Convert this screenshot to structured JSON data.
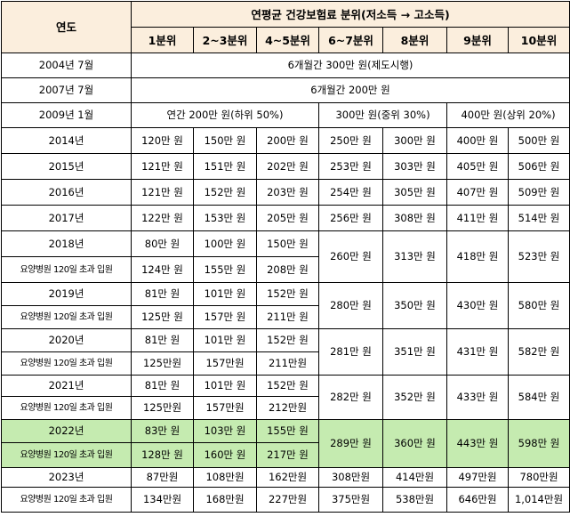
{
  "header": {
    "year": "연도",
    "group": "연평균 건강보험료 분위(저소득 → 고소득)",
    "deciles": [
      "1분위",
      "2~3분위",
      "4~5분위",
      "6~7분위",
      "8분위",
      "9분위",
      "10분위"
    ]
  },
  "early": [
    {
      "year": "2004년 7월",
      "text": "6개월간 300만 원(제도시행)"
    },
    {
      "year": "2007년 7월",
      "text": "6개월간 200만 원"
    }
  ],
  "y2009": {
    "year": "2009년 1월",
    "low": "연간 200만 원(하위 50%)",
    "mid": "300만 원(중위 30%)",
    "high": "400만 원(상위 20%)"
  },
  "simple_rows": [
    {
      "year": "2014년",
      "values": [
        "120만 원",
        "150만 원",
        "200만 원",
        "250만 원",
        "300만 원",
        "400만 원",
        "500만 원"
      ]
    },
    {
      "year": "2015년",
      "values": [
        "121만 원",
        "151만 원",
        "202만 원",
        "253만 원",
        "303만 원",
        "405만 원",
        "506만 원"
      ]
    },
    {
      "year": "2016년",
      "values": [
        "121만 원",
        "152만 원",
        "203만 원",
        "254만 원",
        "305만 원",
        "407만 원",
        "509만 원"
      ]
    },
    {
      "year": "2017년",
      "values": [
        "122만 원",
        "153만 원",
        "205만 원",
        "256만 원",
        "308만 원",
        "411만 원",
        "514만 원"
      ]
    }
  ],
  "double_rows": [
    {
      "year": "2018년",
      "sub_label": "요양병원 120일 초과 입원",
      "top": [
        "80만 원",
        "100만 원",
        "150만 원"
      ],
      "bottom": [
        "124만 원",
        "155만 원",
        "208만 원"
      ],
      "shared": [
        "260만 원",
        "313만 원",
        "418만 원",
        "523만 원"
      ]
    },
    {
      "year": "2019년",
      "sub_label": "요양병원 120일 초과 입원",
      "top": [
        "81만 원",
        "101만 원",
        "152만 원"
      ],
      "bottom": [
        "125만 원",
        "157만 원",
        "211만 원"
      ],
      "shared": [
        "280만 원",
        "350만 원",
        "430만 원",
        "580만 원"
      ]
    },
    {
      "year": "2020년",
      "sub_label": "요양병원 120일 초과 입원",
      "top": [
        "81만 원",
        "101만 원",
        "152만 원"
      ],
      "bottom": [
        "125만원",
        "157만원",
        "211만원"
      ],
      "shared": [
        "281만 원",
        "351만 원",
        "431만 원",
        "582만 원"
      ]
    },
    {
      "year": "2021년",
      "sub_label": "요양병원 120일 초과 입원",
      "top": [
        "81만 원",
        "101만 원",
        "152만 원"
      ],
      "bottom": [
        "125만원",
        "157만원",
        "212만원"
      ],
      "shared": [
        "282만 원",
        "352만 원",
        "433만 원",
        "584만 원"
      ]
    },
    {
      "year": "2022년",
      "sub_label": "요양병원 120일 초과 입원",
      "top": [
        "83만 원",
        "103만 원",
        "155만 원"
      ],
      "bottom": [
        "128만 원",
        "160만 원",
        "217만 원"
      ],
      "shared": [
        "289만 원",
        "360만 원",
        "443만 원",
        "598만 원"
      ]
    }
  ],
  "y2023": {
    "year": "2023년",
    "sub_label": "요양병원 120일 초과 입원",
    "top": [
      "87만원",
      "108만원",
      "162만원",
      "308만원",
      "414만원",
      "497만원",
      "780만원"
    ],
    "bottom": [
      "134만원",
      "168만원",
      "227만원",
      "375만원",
      "538만원",
      "646만원",
      "1,014만원"
    ]
  }
}
